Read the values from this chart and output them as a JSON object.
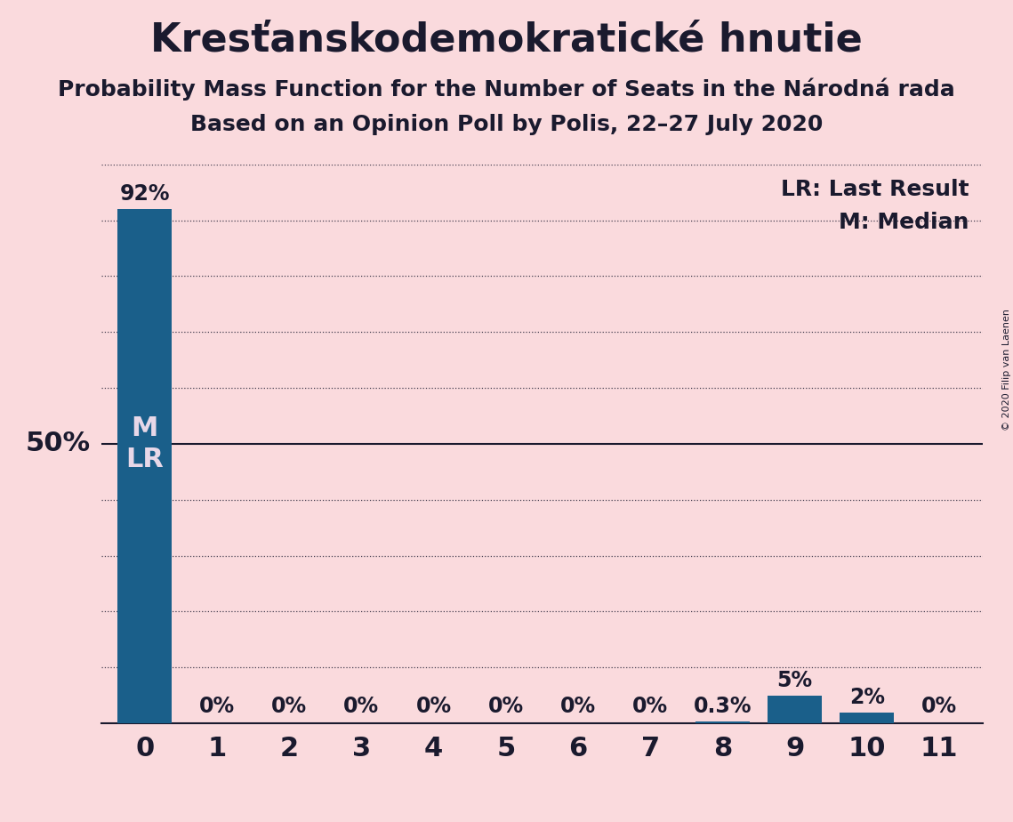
{
  "title": "Kresťanskodemokratické hnutie",
  "subtitle1": "Probability Mass Function for the Number of Seats in the Národná rada",
  "subtitle2": "Based on an Opinion Poll by Polis, 22–27 July 2020",
  "copyright": "© 2020 Filip van Laenen",
  "categories": [
    0,
    1,
    2,
    3,
    4,
    5,
    6,
    7,
    8,
    9,
    10,
    11
  ],
  "values": [
    0.92,
    0.0,
    0.0,
    0.0,
    0.0,
    0.0,
    0.0,
    0.0,
    0.003,
    0.05,
    0.02,
    0.0
  ],
  "labels": [
    "92%",
    "0%",
    "0%",
    "0%",
    "0%",
    "0%",
    "0%",
    "0%",
    "0.3%",
    "5%",
    "2%",
    "0%"
  ],
  "bar_color": "#1a5f8a",
  "background_color": "#fadadd",
  "text_color": "#1a1a2e",
  "median": 0,
  "last_result": 0,
  "legend_lr": "LR: Last Result",
  "legend_m": "M: Median",
  "ylabel_50": "50%",
  "ylim_max": 1.0,
  "title_fontsize": 32,
  "subtitle_fontsize": 18,
  "tick_fontsize": 22,
  "bar_label_fontsize": 17,
  "legend_fontsize": 18,
  "ylabel_fontsize": 22,
  "ml_fontsize": 22,
  "ml_color": "#e8d8e8"
}
